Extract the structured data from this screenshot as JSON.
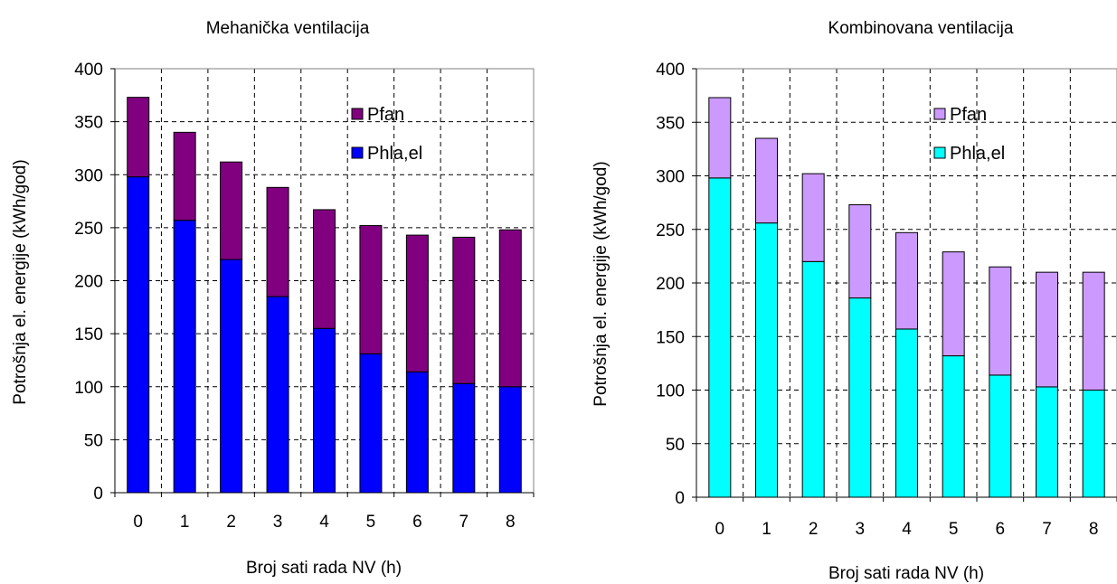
{
  "charts": [
    {
      "type": "bar",
      "stacked": true,
      "title": "Mehanička ventilacija",
      "xlabel": "Broj sati rada NV (h)",
      "ylabel": "Potrošnja el. energije (kWh/god)",
      "categories": [
        "0",
        "1",
        "2",
        "3",
        "4",
        "5",
        "6",
        "7",
        "8"
      ],
      "ylim": [
        0,
        400
      ],
      "yticks": [
        "0",
        "50",
        "100",
        "150",
        "200",
        "250",
        "300",
        "350",
        "400"
      ],
      "grid": true,
      "legend_position": "top-right",
      "series": [
        {
          "name": "Phla,el",
          "color": "#0000ff",
          "values": [
            298,
            257,
            220,
            185,
            155,
            131,
            114,
            103,
            100
          ]
        },
        {
          "name": "Pfan",
          "color": "#800080",
          "values": [
            75,
            83,
            92,
            103,
            112,
            121,
            129,
            138,
            148
          ]
        }
      ],
      "totals": [
        373,
        340,
        312,
        288,
        267,
        252,
        243,
        241,
        248
      ]
    },
    {
      "type": "bar",
      "stacked": true,
      "title": "Kombinovana ventilacija",
      "xlabel": "Broj sati rada NV (h)",
      "ylabel": "Potrošnja el. energije (kWh/god)",
      "categories": [
        "0",
        "1",
        "2",
        "3",
        "4",
        "5",
        "6",
        "7",
        "8"
      ],
      "ylim": [
        0,
        400
      ],
      "yticks": [
        "0",
        "50",
        "100",
        "150",
        "200",
        "250",
        "300",
        "350",
        "400"
      ],
      "grid": true,
      "legend_position": "top-right",
      "series": [
        {
          "name": "Phla,el",
          "color": "#00ffff",
          "values": [
            298,
            256,
            220,
            186,
            157,
            132,
            114,
            103,
            100
          ]
        },
        {
          "name": "Pfan",
          "color": "#cc99ff",
          "values": [
            75,
            79,
            82,
            87,
            90,
            97,
            101,
            107,
            110
          ]
        }
      ],
      "totals": [
        373,
        335,
        302,
        273,
        247,
        229,
        215,
        210,
        210
      ]
    }
  ]
}
